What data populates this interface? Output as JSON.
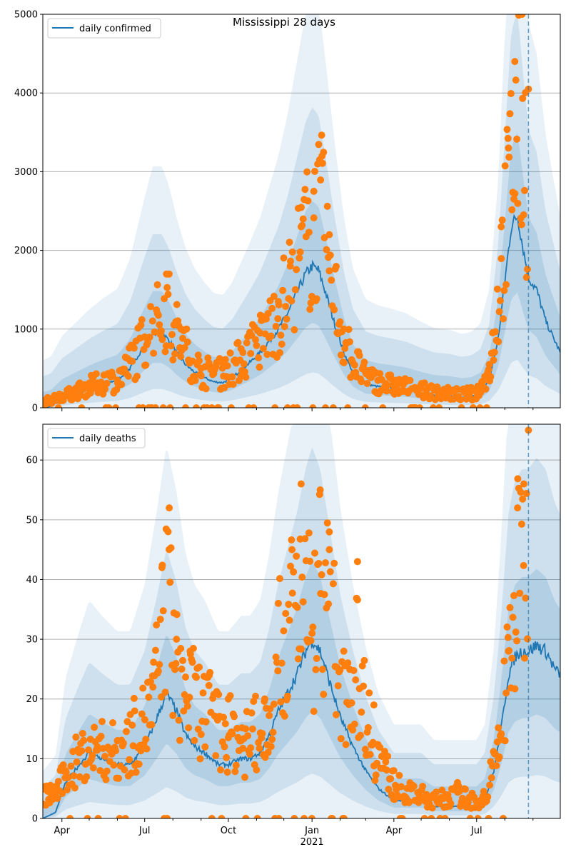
{
  "title": "Mississippi 28 days",
  "colors": {
    "line": "#1f77b4",
    "points": "#ff7f0e",
    "band": "#1f77b4",
    "grid": "#b0b0b0"
  },
  "chart_data": [
    {
      "type": "line",
      "panel": "top",
      "title": "Mississippi 28 days",
      "xlabel": "",
      "ylabel": "",
      "ylim": [
        0,
        5000
      ],
      "yticks": [
        0,
        1000,
        2000,
        3000,
        4000,
        5000
      ],
      "grid": "horizontal",
      "legend": {
        "position": "top-left",
        "entries": [
          "daily confirmed"
        ]
      },
      "forecast_start": "2021-08-27",
      "series": [
        {
          "name": "daily confirmed",
          "kind": "line",
          "x": [
            "2020-03-11",
            "2020-03-20",
            "2020-04-01",
            "2020-04-15",
            "2020-05-01",
            "2020-05-15",
            "2020-06-01",
            "2020-06-15",
            "2020-07-01",
            "2020-07-10",
            "2020-07-20",
            "2020-07-28",
            "2020-08-05",
            "2020-08-15",
            "2020-08-25",
            "2020-09-05",
            "2020-09-15",
            "2020-09-25",
            "2020-10-05",
            "2020-10-15",
            "2020-10-25",
            "2020-11-05",
            "2020-11-15",
            "2020-11-25",
            "2020-12-05",
            "2020-12-15",
            "2020-12-25",
            "2021-01-01",
            "2021-01-08",
            "2021-01-15",
            "2021-01-25",
            "2021-02-05",
            "2021-02-15",
            "2021-03-01",
            "2021-03-15",
            "2021-04-01",
            "2021-04-15",
            "2021-05-01",
            "2021-05-15",
            "2021-06-01",
            "2021-06-15",
            "2021-06-25",
            "2021-07-05",
            "2021-07-15",
            "2021-07-25",
            "2021-08-01",
            "2021-08-08",
            "2021-08-15",
            "2021-08-20",
            "2021-08-27",
            "2021-09-05",
            "2021-09-15",
            "2021-09-25",
            "2021-10-01"
          ],
          "values": [
            0,
            20,
            120,
            180,
            250,
            300,
            350,
            500,
            800,
            950,
            950,
            850,
            700,
            550,
            450,
            380,
            330,
            320,
            380,
            480,
            580,
            700,
            850,
            1000,
            1200,
            1450,
            1700,
            1800,
            1750,
            1500,
            1100,
            700,
            450,
            300,
            270,
            250,
            230,
            190,
            160,
            150,
            130,
            140,
            180,
            350,
            900,
            1600,
            2300,
            2450,
            2100,
            1650,
            1500,
            1100,
            850,
            700
          ]
        },
        {
          "name": "",
          "kind": "scatter",
          "x": [
            "2020-04-10",
            "2020-05-05",
            "2020-06-01",
            "2020-06-15",
            "2020-07-01",
            "2020-07-15",
            "2020-07-25",
            "2020-08-10",
            "2020-09-01",
            "2020-09-25",
            "2020-10-15",
            "2020-11-05",
            "2020-11-25",
            "2020-12-08",
            "2020-12-20",
            "2021-01-03",
            "2021-01-12",
            "2021-01-20",
            "2021-02-05",
            "2021-03-01",
            "2021-04-01",
            "2021-05-01",
            "2021-06-01",
            "2021-07-01",
            "2021-07-15",
            "2021-07-28",
            "2021-08-05",
            "2021-08-12",
            "2021-08-20",
            "2021-08-27"
          ],
          "values": [
            180,
            300,
            350,
            600,
            900,
            1200,
            1700,
            1000,
            500,
            550,
            750,
            950,
            1350,
            1800,
            2300,
            2750,
            3200,
            2200,
            1000,
            450,
            300,
            250,
            200,
            220,
            550,
            2300,
            3300,
            4400,
            5000,
            4050
          ]
        }
      ]
    },
    {
      "type": "line",
      "panel": "bottom",
      "title": "",
      "xlabel": "",
      "ylabel": "",
      "ylim": [
        0,
        66
      ],
      "yticks": [
        0,
        10,
        20,
        30,
        40,
        50,
        60
      ],
      "xticks": [
        "Apr",
        "Jul",
        "Oct",
        "Jan",
        "Apr",
        "Jul"
      ],
      "xtick_secondary": "2021",
      "grid": "horizontal",
      "legend": {
        "position": "top-left",
        "entries": [
          "daily deaths"
        ]
      },
      "forecast_start": "2021-08-27",
      "series": [
        {
          "name": "daily deaths",
          "kind": "line",
          "x": [
            "2020-03-11",
            "2020-03-25",
            "2020-04-05",
            "2020-04-20",
            "2020-05-01",
            "2020-05-15",
            "2020-06-01",
            "2020-06-15",
            "2020-07-01",
            "2020-07-15",
            "2020-07-25",
            "2020-08-05",
            "2020-08-15",
            "2020-08-25",
            "2020-09-05",
            "2020-09-20",
            "2020-10-01",
            "2020-10-15",
            "2020-10-25",
            "2020-11-05",
            "2020-11-15",
            "2020-11-25",
            "2020-12-05",
            "2020-12-15",
            "2020-12-25",
            "2021-01-01",
            "2021-01-10",
            "2021-01-20",
            "2021-02-01",
            "2021-02-15",
            "2021-03-01",
            "2021-03-15",
            "2021-04-01",
            "2021-04-15",
            "2021-05-01",
            "2021-05-15",
            "2021-06-01",
            "2021-06-15",
            "2021-07-01",
            "2021-07-10",
            "2021-07-20",
            "2021-07-28",
            "2021-08-05",
            "2021-08-12",
            "2021-08-20",
            "2021-08-27",
            "2021-09-05",
            "2021-09-15",
            "2021-09-25",
            "2021-10-01"
          ],
          "values": [
            0,
            1,
            6,
            9,
            11,
            10,
            9,
            9,
            12,
            17,
            21,
            18,
            14,
            12,
            11,
            9,
            9,
            10,
            10,
            11,
            14,
            18,
            21,
            24,
            28,
            30,
            28,
            23,
            17,
            12,
            8,
            5,
            3,
            3,
            3,
            2,
            2,
            2,
            2,
            3,
            8,
            15,
            24,
            27,
            28,
            28,
            29,
            28,
            25,
            24
          ]
        },
        {
          "name": "",
          "kind": "scatter",
          "x": [
            "2020-04-05",
            "2020-04-20",
            "2020-05-10",
            "2020-06-01",
            "2020-06-20",
            "2020-07-10",
            "2020-07-20",
            "2020-07-28",
            "2020-08-05",
            "2020-08-20",
            "2020-09-10",
            "2020-10-01",
            "2020-10-20",
            "2020-11-10",
            "2020-11-25",
            "2020-12-10",
            "2020-12-20",
            "2021-01-01",
            "2021-01-10",
            "2021-01-20",
            "2021-02-05",
            "2021-02-20",
            "2021-03-10",
            "2021-04-01",
            "2021-04-20",
            "2021-05-15",
            "2021-06-10",
            "2021-07-05",
            "2021-07-25",
            "2021-08-05",
            "2021-08-15",
            "2021-08-22",
            "2021-08-27"
          ],
          "values": [
            8,
            11,
            12,
            13,
            18,
            22,
            42,
            52,
            30,
            28,
            24,
            20,
            15,
            20,
            36,
            45,
            56,
            31,
            55,
            45,
            28,
            43,
            19,
            8,
            5,
            4,
            6,
            3,
            10,
            28,
            52,
            56,
            65
          ]
        }
      ]
    }
  ]
}
